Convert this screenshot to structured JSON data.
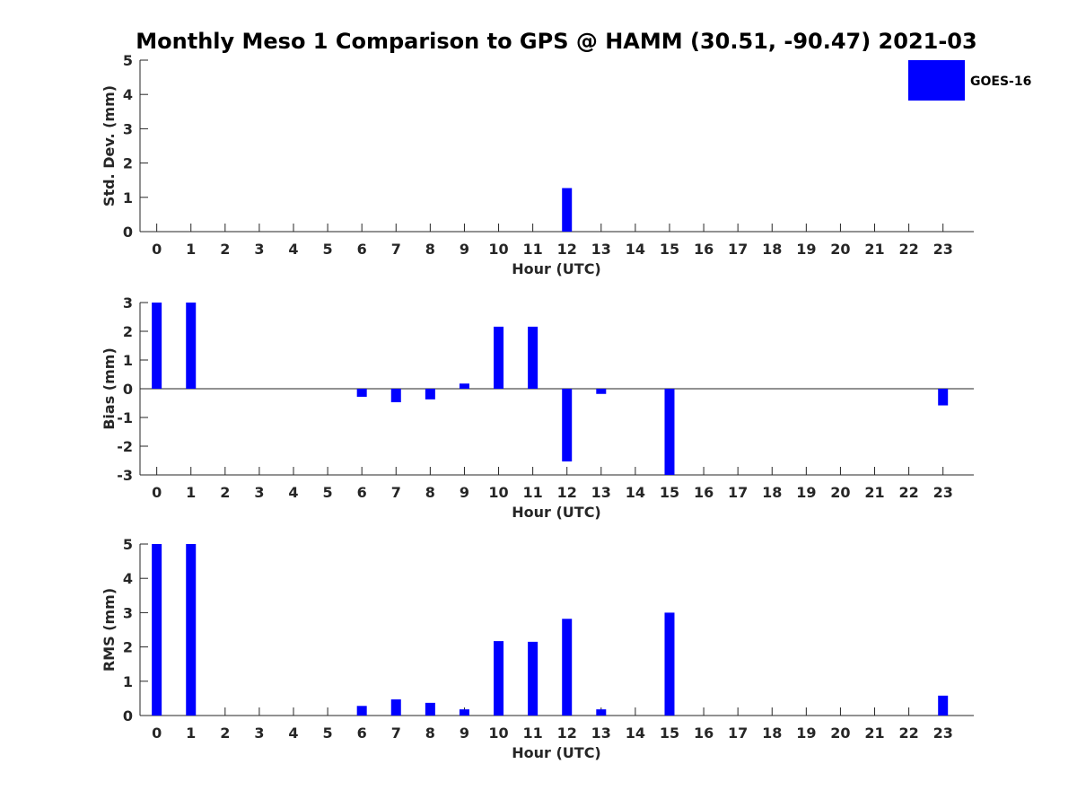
{
  "figure": {
    "title": "Monthly Meso 1 Comparison to GPS @ HAMM (30.51, -90.47) 2021-03",
    "legend": {
      "label": "GOES-16",
      "color": "#0000ff",
      "placement": "top-right"
    }
  },
  "chart_data": [
    {
      "type": "bar",
      "name": "std-dev",
      "ylabel": "Std. Dev. (mm)",
      "xlabel": "Hour (UTC)",
      "ylim": [
        0,
        5
      ],
      "yticks": [
        "0",
        "1",
        "2",
        "3",
        "4",
        "5"
      ],
      "categories": [
        "0",
        "1",
        "2",
        "3",
        "4",
        "5",
        "6",
        "7",
        "8",
        "9",
        "10",
        "11",
        "12",
        "13",
        "14",
        "15",
        "16",
        "17",
        "18",
        "19",
        "20",
        "21",
        "22",
        "23"
      ],
      "series": [
        {
          "name": "GOES-16",
          "color": "#0000ff",
          "values": [
            null,
            null,
            null,
            null,
            null,
            null,
            null,
            null,
            null,
            null,
            null,
            null,
            1.27,
            null,
            null,
            null,
            null,
            null,
            null,
            null,
            null,
            null,
            null,
            null
          ]
        }
      ]
    },
    {
      "type": "bar",
      "name": "bias",
      "ylabel": "Bias (mm)",
      "xlabel": "Hour (UTC)",
      "ylim": [
        -3,
        3
      ],
      "yticks": [
        "-3",
        "-2",
        "-1",
        "0",
        "1",
        "2",
        "3"
      ],
      "zero_line": true,
      "categories": [
        "0",
        "1",
        "2",
        "3",
        "4",
        "5",
        "6",
        "7",
        "8",
        "9",
        "10",
        "11",
        "12",
        "13",
        "14",
        "15",
        "16",
        "17",
        "18",
        "19",
        "20",
        "21",
        "22",
        "23"
      ],
      "series": [
        {
          "name": "GOES-16",
          "color": "#0000ff",
          "values": [
            3.0,
            3.0,
            null,
            null,
            null,
            null,
            -0.28,
            -0.47,
            -0.37,
            0.18,
            2.16,
            2.16,
            -2.53,
            -0.18,
            null,
            -3.0,
            null,
            null,
            null,
            null,
            null,
            null,
            null,
            -0.58
          ]
        }
      ]
    },
    {
      "type": "bar",
      "name": "rms",
      "ylabel": "RMS (mm)",
      "xlabel": "Hour (UTC)",
      "ylim": [
        0,
        5
      ],
      "yticks": [
        "0",
        "1",
        "2",
        "3",
        "4",
        "5"
      ],
      "categories": [
        "0",
        "1",
        "2",
        "3",
        "4",
        "5",
        "6",
        "7",
        "8",
        "9",
        "10",
        "11",
        "12",
        "13",
        "14",
        "15",
        "16",
        "17",
        "18",
        "19",
        "20",
        "21",
        "22",
        "23"
      ],
      "series": [
        {
          "name": "GOES-16",
          "color": "#0000ff",
          "values": [
            5.0,
            5.0,
            null,
            null,
            null,
            null,
            0.28,
            0.47,
            0.37,
            0.18,
            2.17,
            2.15,
            2.82,
            0.18,
            null,
            3.0,
            null,
            null,
            null,
            null,
            null,
            null,
            null,
            0.58
          ]
        }
      ]
    }
  ]
}
